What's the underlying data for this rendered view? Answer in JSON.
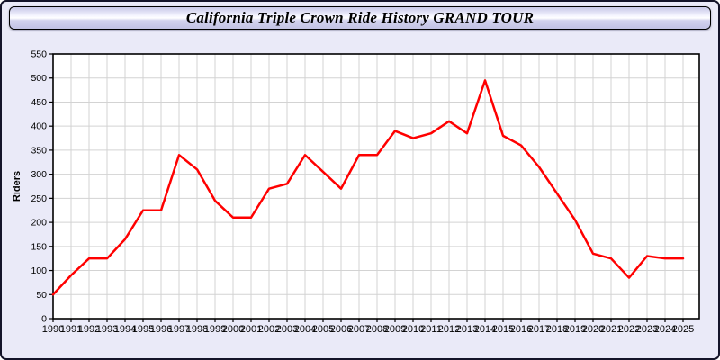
{
  "header": {
    "title": "California Triple Crown Ride History GRAND TOUR"
  },
  "colors": {
    "page_background": "#eaeaf8",
    "plot_background": "#ffffff",
    "gridline": "#d3d3d3",
    "plot_border": "#000000",
    "line": "#ff0000",
    "text": "#000000"
  },
  "chart_data": {
    "type": "line",
    "title": "California Triple Crown Ride History GRAND TOUR",
    "xlabel": "",
    "ylabel": "Riders",
    "ylim": [
      0,
      550
    ],
    "ytick_step": 50,
    "grid": true,
    "legend_position": "none",
    "x": [
      1990,
      1991,
      1992,
      1993,
      1994,
      1995,
      1996,
      1997,
      1998,
      1999,
      2000,
      2001,
      2002,
      2003,
      2004,
      2005,
      2006,
      2007,
      2008,
      2009,
      2010,
      2011,
      2012,
      2013,
      2014,
      2015,
      2016,
      2017,
      2018,
      2019,
      2020,
      2021,
      2022,
      2023,
      2024,
      2025
    ],
    "series": [
      {
        "name": "Riders",
        "color": "#ff0000",
        "values": [
          50,
          90,
          125,
          125,
          165,
          225,
          225,
          340,
          310,
          245,
          210,
          210,
          270,
          280,
          340,
          305,
          270,
          340,
          340,
          390,
          375,
          385,
          410,
          385,
          495,
          380,
          360,
          315,
          260,
          205,
          135,
          125,
          85,
          130,
          125,
          125
        ]
      }
    ]
  }
}
